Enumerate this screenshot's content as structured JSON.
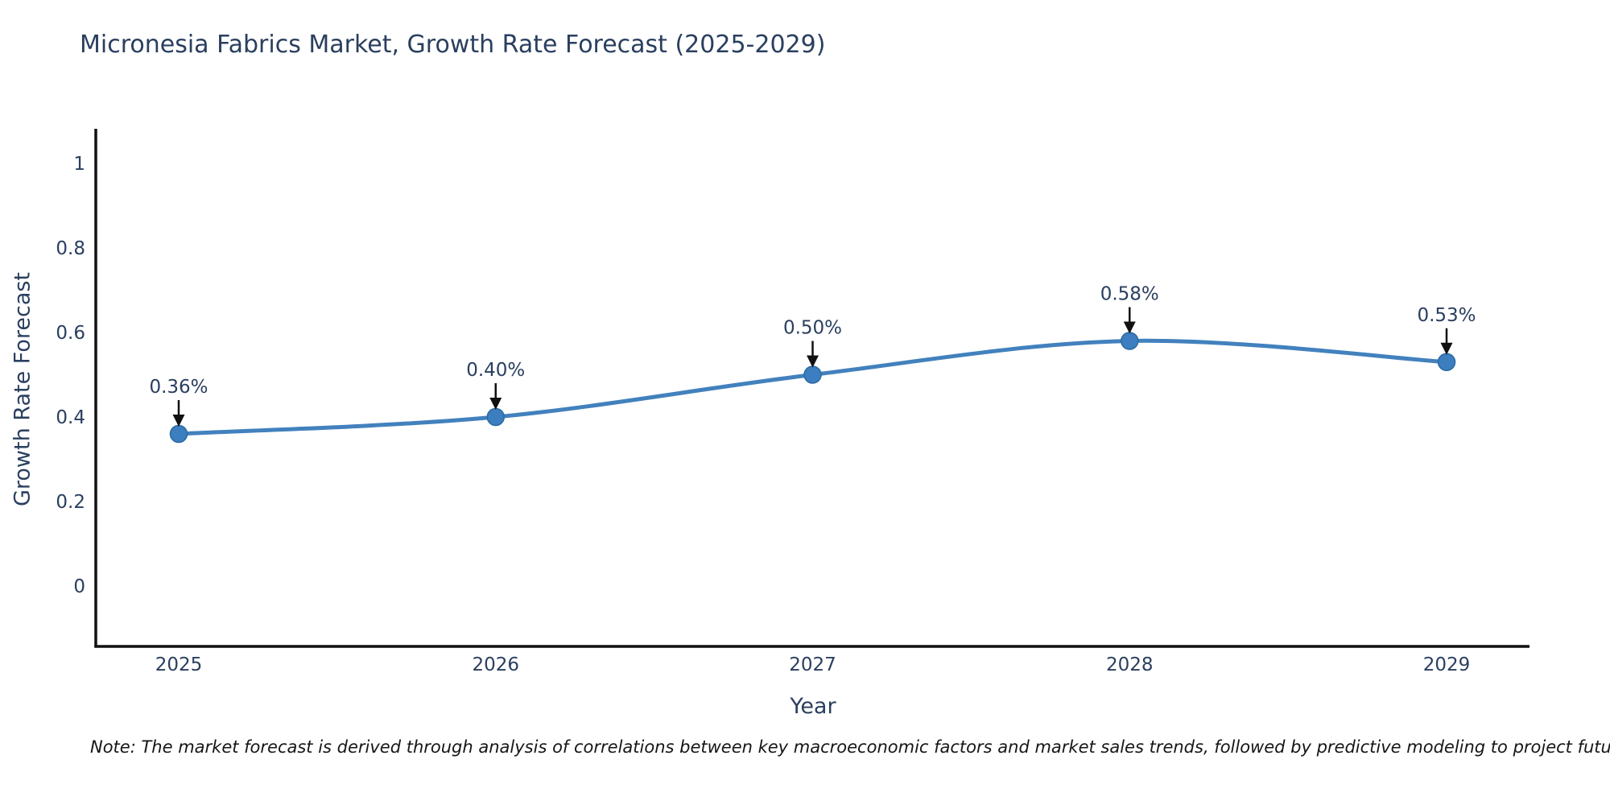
{
  "title": "Micronesia Fabrics Market, Growth Rate Forecast (2025-2029)",
  "note": "Note: The market forecast is derived through analysis of correlations between key macroeconomic factors and market sales trends, followed by predictive modeling to project future sales",
  "chart_data": {
    "type": "line",
    "line_shape": "spline",
    "title": "Micronesia Fabrics Market, Growth Rate Forecast (2025-2029)",
    "xlabel": "Year",
    "ylabel": "Growth Rate Forecast",
    "x": [
      2025,
      2026,
      2027,
      2028,
      2029
    ],
    "categories": [
      "2025",
      "2026",
      "2027",
      "2028",
      "2029"
    ],
    "values": [
      0.36,
      0.4,
      0.5,
      0.58,
      0.53
    ],
    "point_labels": [
      "0.36%",
      "0.40%",
      "0.50%",
      "0.58%",
      "0.53%"
    ],
    "yticks": [
      0,
      0.2,
      0.4,
      0.6,
      0.8,
      1
    ],
    "ytick_labels": [
      "0",
      "0.2",
      "0.4",
      "0.6",
      "0.8",
      "1"
    ],
    "ylim": [
      -0.143,
      1.082
    ],
    "grid": false,
    "legend": "none",
    "colors": {
      "line": "#4281bd",
      "marker_fill": "#3c7ebf",
      "marker_edge": "#2b6aa3",
      "axis_line": "#111111",
      "annotation_arrow": "#111111",
      "text": "#2a3f5f",
      "note_text": "#161616",
      "background": "#ffffff"
    }
  }
}
